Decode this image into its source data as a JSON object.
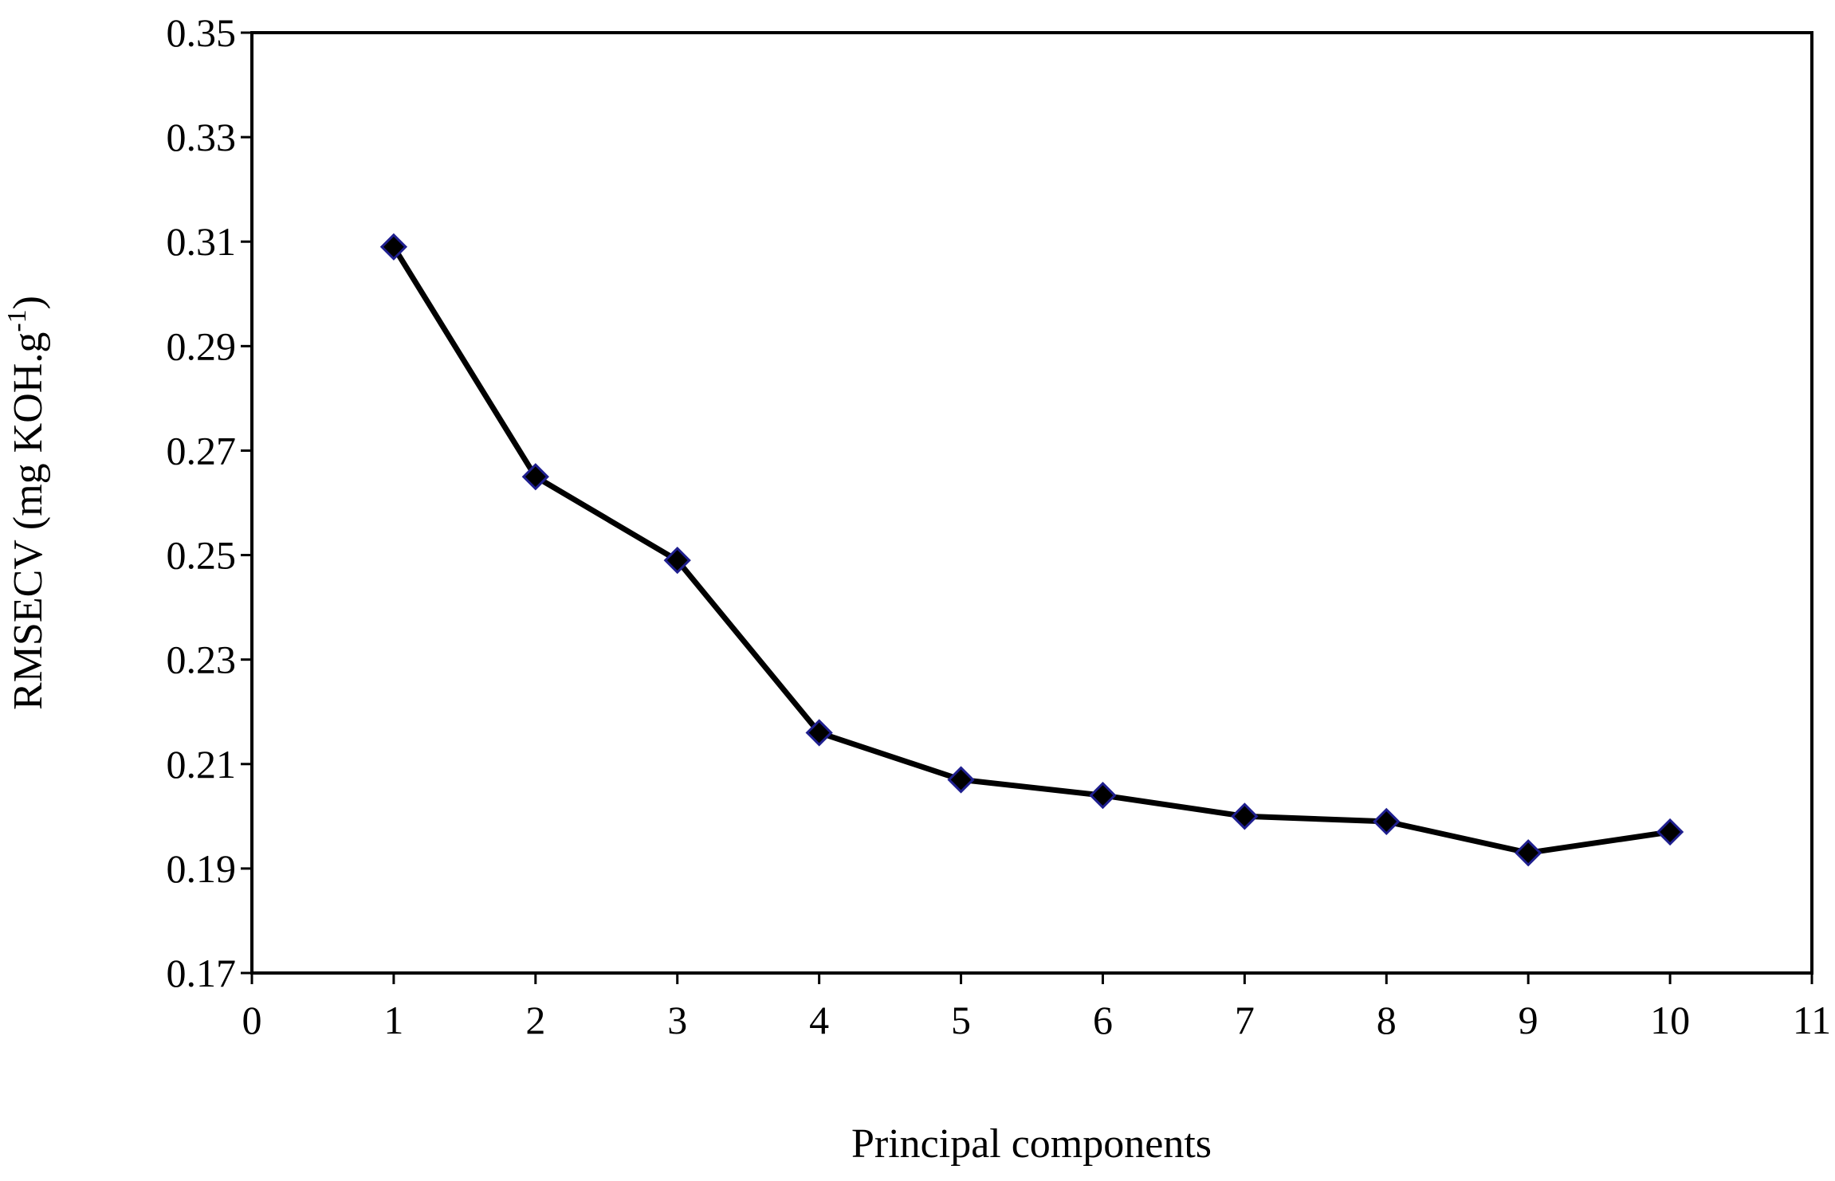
{
  "chart_data": {
    "type": "line",
    "title": "",
    "xlabel": "Principal components",
    "ylabel": {
      "prefix": "RMSECV (mg KOH.g",
      "superscript": "-1",
      "suffix": ")"
    },
    "xlim": [
      0,
      11
    ],
    "ylim": [
      0.17,
      0.35
    ],
    "x_ticks": [
      "0",
      "1",
      "2",
      "3",
      "4",
      "5",
      "6",
      "7",
      "8",
      "9",
      "10",
      "11"
    ],
    "y_ticks": [
      "0.17",
      "0.19",
      "0.21",
      "0.23",
      "0.25",
      "0.27",
      "0.29",
      "0.31",
      "0.33",
      "0.35"
    ],
    "grid": false,
    "legend": "none",
    "series": [
      {
        "marker": "diamond",
        "color": "#000000",
        "marker_edge_color": "#1f1f8f",
        "x": [
          1,
          2,
          3,
          4,
          5,
          6,
          7,
          8,
          9,
          10
        ],
        "y": [
          0.309,
          0.265,
          0.249,
          0.216,
          0.207,
          0.204,
          0.2,
          0.199,
          0.193,
          0.197
        ]
      }
    ]
  }
}
